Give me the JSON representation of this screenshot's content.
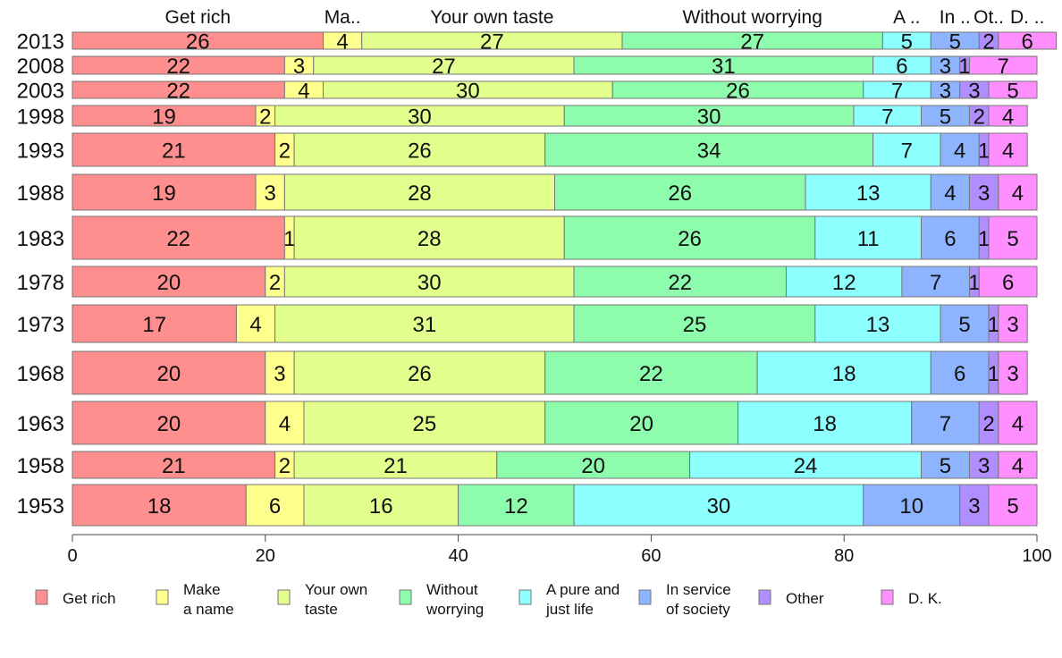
{
  "chart_data": {
    "type": "bar",
    "orientation": "horizontal",
    "stacked": true,
    "title": "",
    "xlabel": "",
    "ylabel": "",
    "xlim": [
      0,
      100
    ],
    "x_ticks": [
      0,
      20,
      40,
      60,
      80,
      100
    ],
    "grid": false,
    "legend_position": "bottom",
    "categories": [
      "2013",
      "2008",
      "2003",
      "1998",
      "1993",
      "1988",
      "1983",
      "1978",
      "1973",
      "1968",
      "1963",
      "1958",
      "1953"
    ],
    "top_labels": [
      "Get rich",
      "Ma..",
      "Your own taste",
      "Without worrying",
      "A ..",
      "In ..",
      "Ot..",
      "D. .."
    ],
    "series": [
      {
        "name": "Get rich",
        "legend": [
          "Get rich"
        ],
        "color": "#ff8e8e",
        "values": [
          26,
          22,
          22,
          19,
          21,
          19,
          22,
          20,
          17,
          20,
          20,
          21,
          18
        ]
      },
      {
        "name": "Make a name",
        "legend": [
          "Make",
          "a name"
        ],
        "color": "#ffff8e",
        "values": [
          4,
          3,
          4,
          2,
          2,
          3,
          1,
          2,
          4,
          3,
          4,
          2,
          6
        ]
      },
      {
        "name": "Your own taste",
        "legend": [
          "Your own",
          "taste"
        ],
        "color": "#e2ff8e",
        "values": [
          27,
          27,
          30,
          30,
          26,
          28,
          28,
          30,
          31,
          26,
          25,
          21,
          16
        ]
      },
      {
        "name": "Without worrying",
        "legend": [
          "Without",
          "worrying"
        ],
        "color": "#8efcad",
        "values": [
          27,
          31,
          26,
          30,
          34,
          26,
          26,
          22,
          25,
          22,
          20,
          20,
          12
        ]
      },
      {
        "name": "A pure and just life",
        "legend": [
          "A pure and",
          "just life"
        ],
        "color": "#8effff",
        "values": [
          5,
          6,
          7,
          7,
          7,
          13,
          11,
          12,
          13,
          18,
          18,
          24,
          30
        ]
      },
      {
        "name": "In service of society",
        "legend": [
          "In service",
          "of society"
        ],
        "color": "#8eb4ff",
        "values": [
          5,
          3,
          3,
          5,
          4,
          4,
          6,
          7,
          5,
          6,
          7,
          5,
          10
        ]
      },
      {
        "name": "Other",
        "legend": [
          "Other"
        ],
        "color": "#b08eff",
        "values": [
          2,
          1,
          3,
          2,
          1,
          3,
          1,
          1,
          1,
          1,
          2,
          3,
          3
        ]
      },
      {
        "name": "D. K.",
        "legend": [
          "D. K."
        ],
        "color": "#ff8eff",
        "values": [
          6,
          7,
          5,
          4,
          4,
          4,
          5,
          6,
          3,
          3,
          4,
          4,
          5
        ]
      }
    ]
  }
}
